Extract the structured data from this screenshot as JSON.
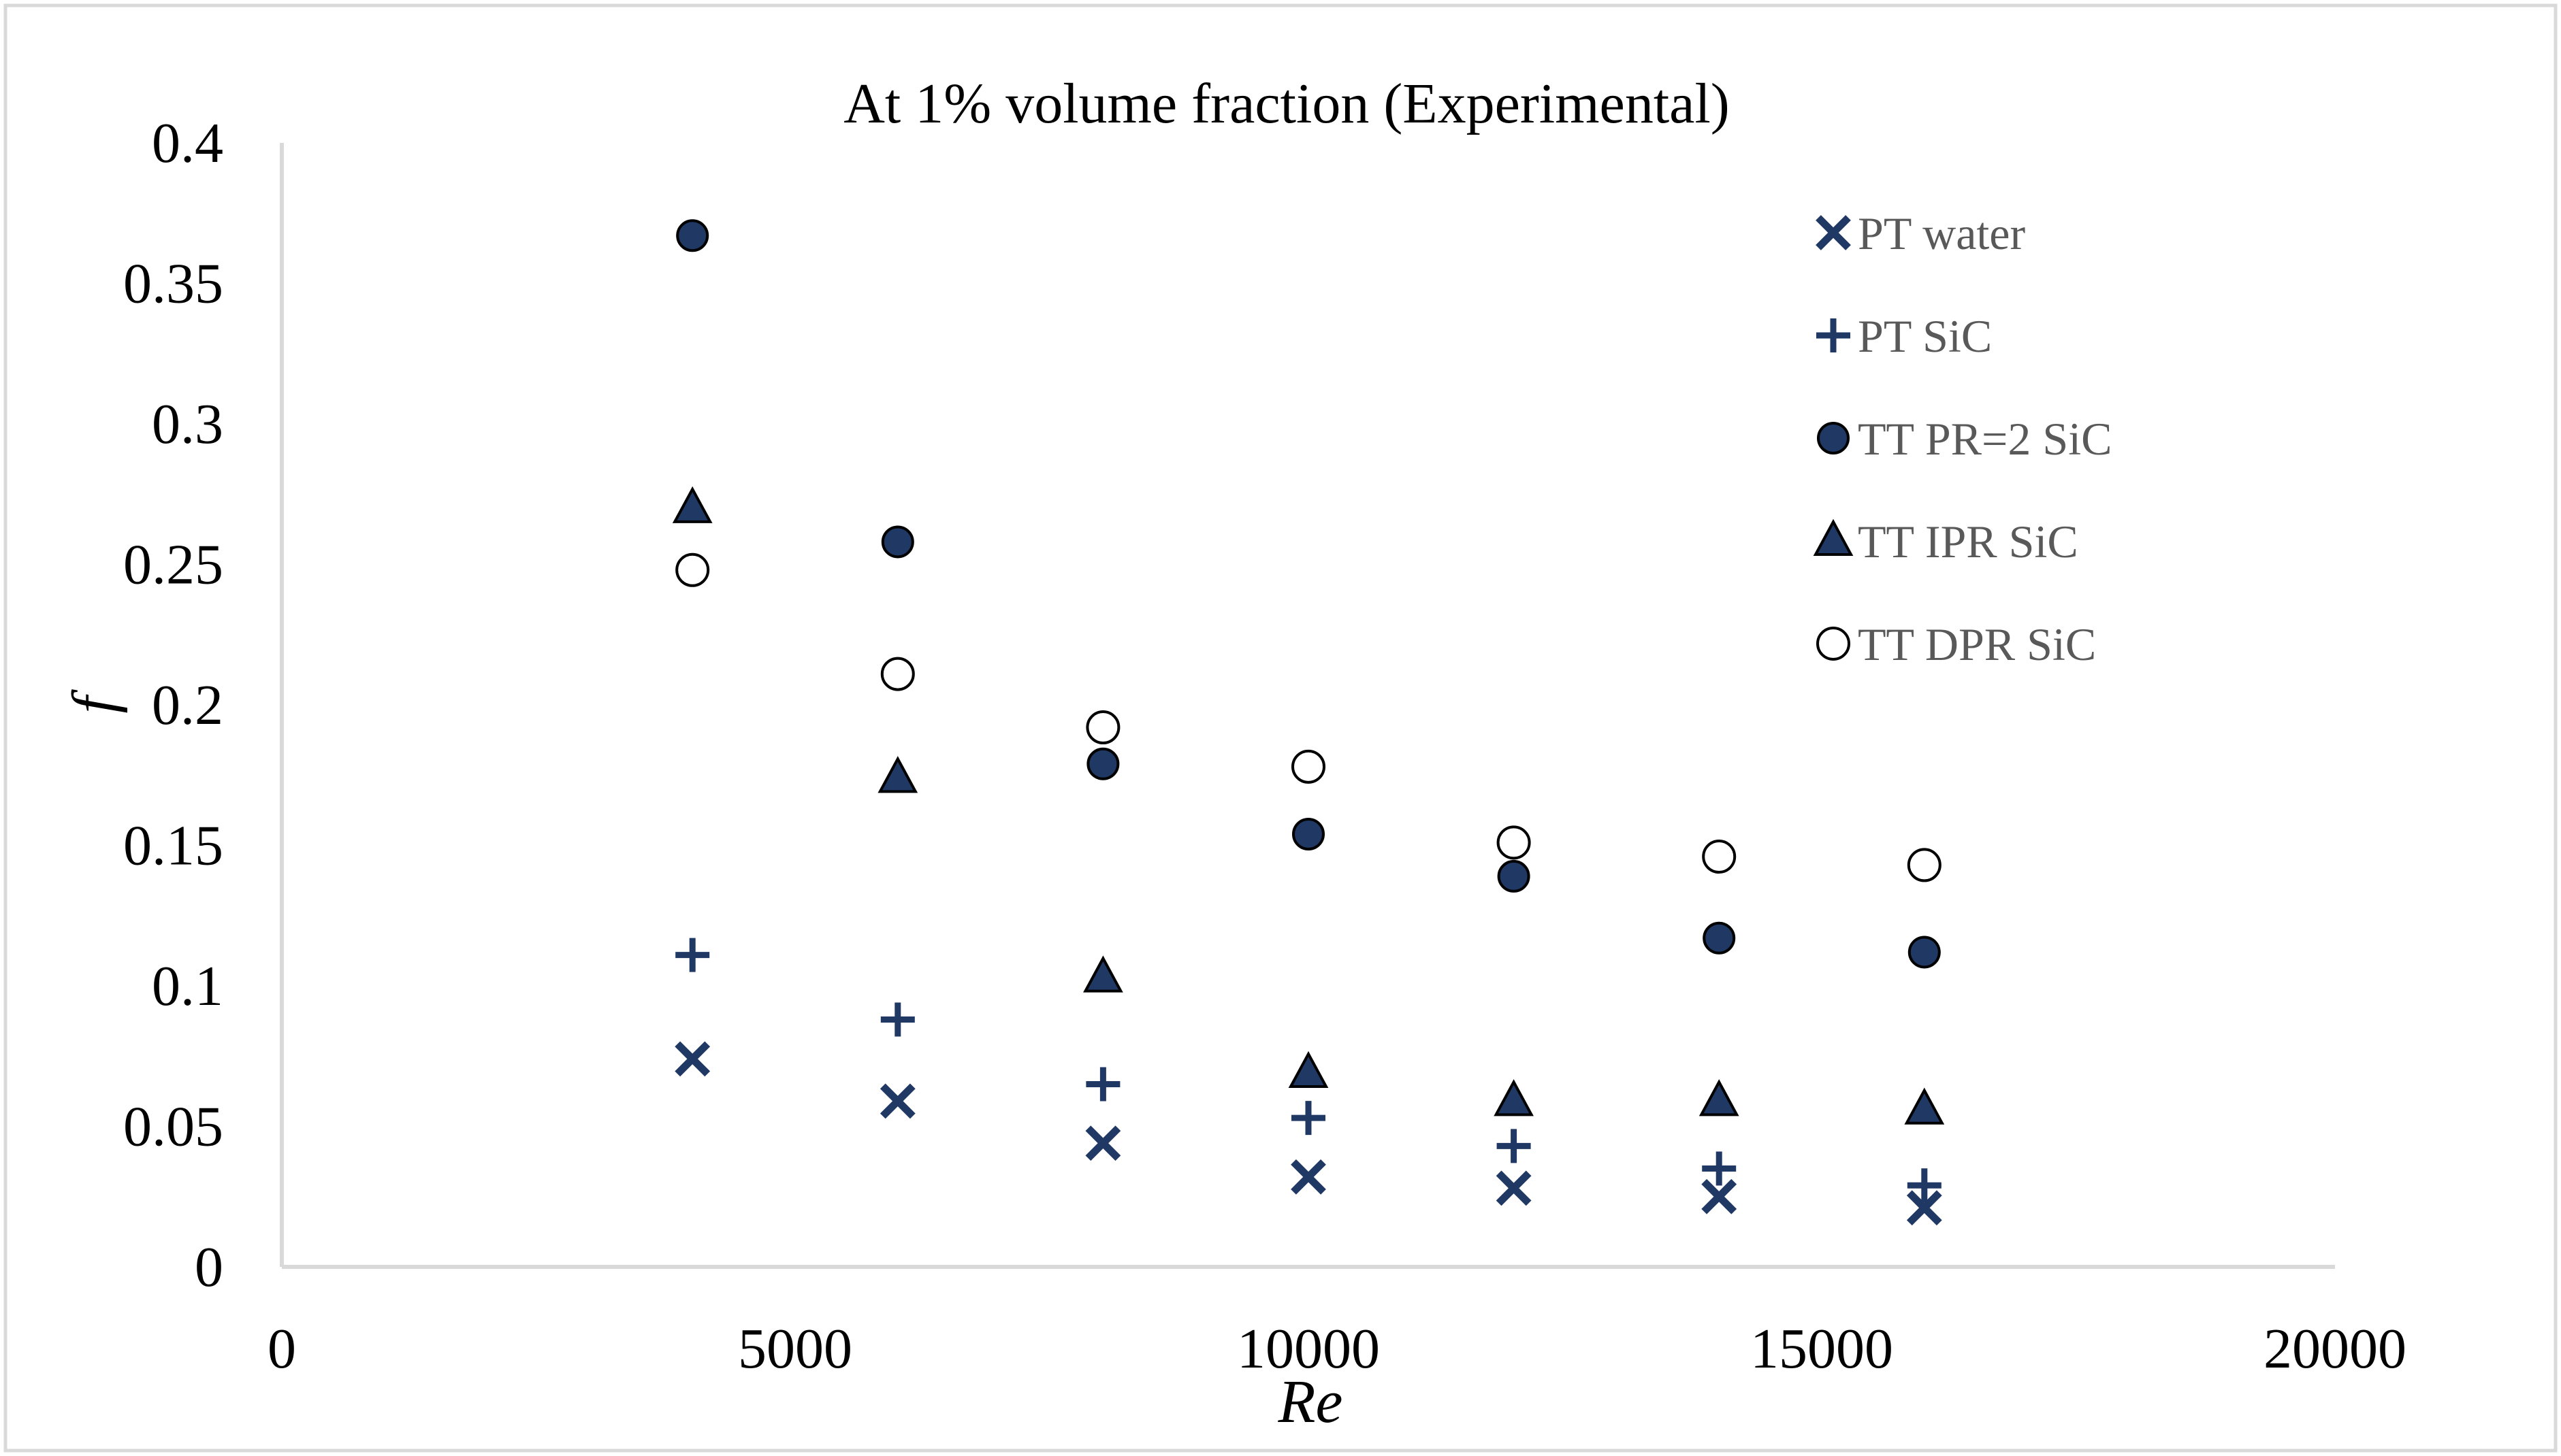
{
  "chart_data": {
    "type": "scatter",
    "title": "At 1% volume fraction (Experimental)",
    "xlabel": "Re",
    "ylabel": "f",
    "xlim": [
      0,
      20000
    ],
    "ylim": [
      0,
      0.4
    ],
    "x_ticks": [
      0,
      5000,
      10000,
      15000,
      20000
    ],
    "y_ticks": [
      0,
      0.05,
      0.1,
      0.15,
      0.2,
      0.25,
      0.3,
      0.35,
      0.4
    ],
    "x_tick_labels": [
      "0",
      "5000",
      "10000",
      "15000",
      "20000"
    ],
    "y_tick_labels": [
      "0",
      "0.05",
      "0.1",
      "0.15",
      "0.2",
      "0.25",
      "0.3",
      "0.35",
      "0.4"
    ],
    "grid": false,
    "legend_position": "top-right",
    "x": [
      4000,
      6000,
      8000,
      10000,
      12000,
      14000,
      16000
    ],
    "series": [
      {
        "name": "PT water",
        "marker": "x",
        "color": "#203864",
        "values": [
          0.074,
          0.059,
          0.044,
          0.032,
          0.028,
          0.025,
          0.021
        ]
      },
      {
        "name": "PT SiC",
        "marker": "plus",
        "color": "#203864",
        "values": [
          0.111,
          0.088,
          0.065,
          0.053,
          0.043,
          0.035,
          0.029
        ]
      },
      {
        "name": "TT PR=2 SiC",
        "marker": "filled-circle",
        "color": "#203864",
        "values": [
          0.367,
          0.258,
          0.179,
          0.154,
          0.139,
          0.117,
          0.112
        ]
      },
      {
        "name": "TT IPR SiC",
        "marker": "triangle",
        "color": "#203864",
        "values": [
          0.27,
          0.174,
          0.103,
          0.069,
          0.059,
          0.059,
          0.056
        ]
      },
      {
        "name": "TT DPR SiC",
        "marker": "open-circle",
        "color": "#203864",
        "values": [
          0.248,
          0.211,
          0.192,
          0.178,
          0.151,
          0.146,
          0.143
        ]
      }
    ]
  }
}
